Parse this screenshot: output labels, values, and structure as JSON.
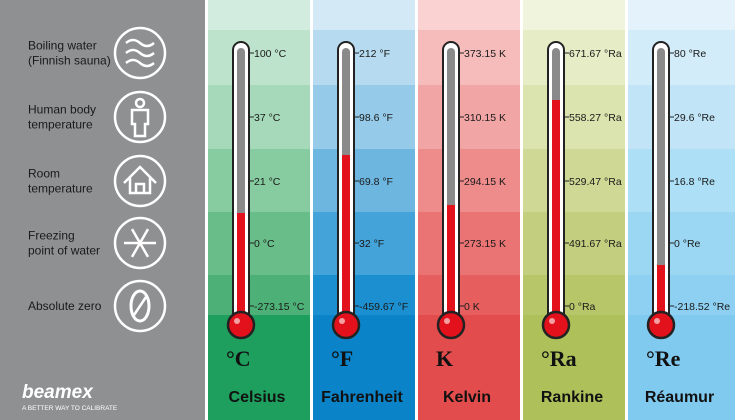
{
  "rows": [
    {
      "lines": [
        "Boiling water",
        "(Finnish sauna)"
      ]
    },
    {
      "lines": [
        "Human body",
        "temperature"
      ]
    },
    {
      "lines": [
        "Room",
        "temperature"
      ]
    },
    {
      "lines": [
        "Freezing",
        "point of water"
      ]
    },
    {
      "lines": [
        "Absolute zero"
      ]
    }
  ],
  "columns": [
    {
      "symbol": "°C",
      "name": "Celsius",
      "readings": [
        "100 °C",
        "37 °C",
        "21 °C",
        "0 °C",
        "-273.15 °C"
      ]
    },
    {
      "symbol": "°F",
      "name": "Fahrenheit",
      "readings": [
        "212 °F",
        "98.6 °F",
        "69.8 °F",
        "32 °F",
        "-459.67 °F"
      ]
    },
    {
      "symbol": "K",
      "name": "Kelvin",
      "readings": [
        "373.15 K",
        "310.15 K",
        "294.15 K",
        "273.15 K",
        "0 K"
      ]
    },
    {
      "symbol": "°Ra",
      "name": "Rankine",
      "readings": [
        "671.67 °Ra",
        "558.27 °Ra",
        "529.47 °Ra",
        "491.67 °Ra",
        "0 °Ra"
      ]
    },
    {
      "symbol": "°Re",
      "name": "Réaumur",
      "readings": [
        "80 °Re",
        "29.6 °Re",
        "16.8 °Re",
        "0 °Re",
        "-218.52 °Re"
      ]
    }
  ],
  "logo": {
    "name": "beamex",
    "tagline": "A BETTER WAY TO CALIBRATE"
  }
}
